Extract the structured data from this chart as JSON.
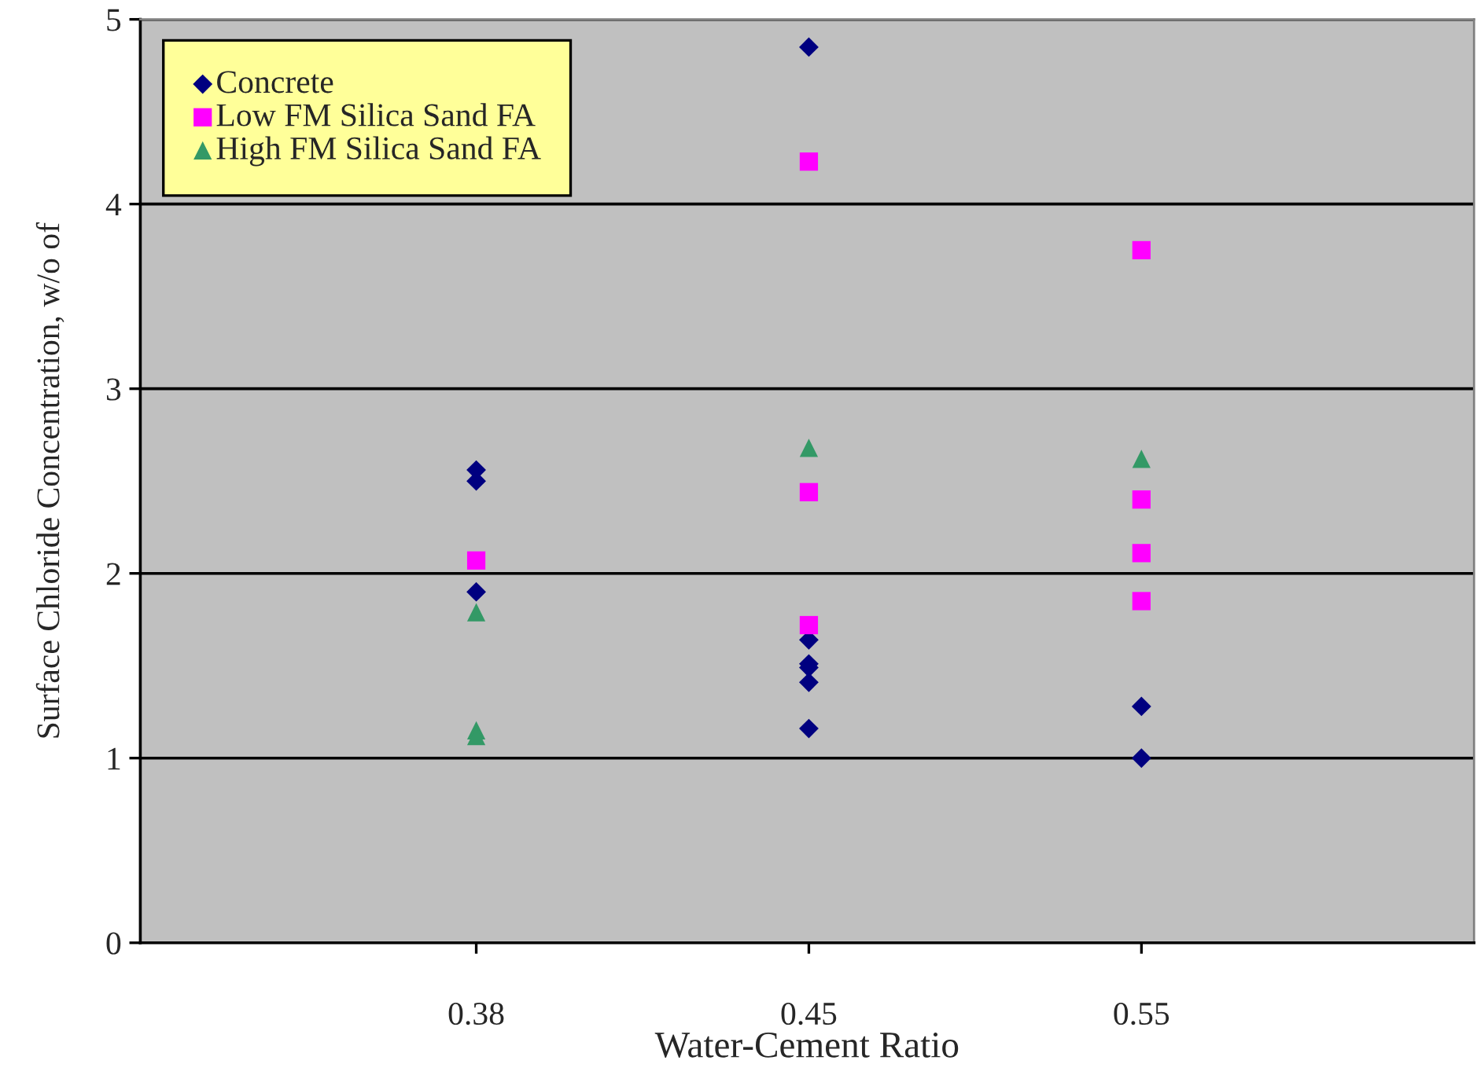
{
  "chart_data": {
    "type": "scatter",
    "xlabel": "Water-Cement Ratio",
    "ylabel": "Surface Chloride Concentration, w/o of",
    "categories": [
      "0.38",
      "0.45",
      "0.55"
    ],
    "ylim": [
      0,
      5
    ],
    "yticks": [
      0,
      1,
      2,
      3,
      4,
      5
    ],
    "grid": "y",
    "legend": "top left",
    "series": [
      {
        "name": "Concrete",
        "color": "#000080",
        "marker": "diamond",
        "x": [
          "0.38",
          "0.38",
          "0.38",
          "0.45",
          "0.45",
          "0.45",
          "0.45",
          "0.45",
          "0.45",
          "0.55",
          "0.55"
        ],
        "values": [
          2.56,
          2.5,
          1.9,
          4.85,
          1.64,
          1.51,
          1.49,
          1.41,
          1.16,
          1.28,
          1.0
        ]
      },
      {
        "name": "Low FM Silica Sand FA",
        "color": "#ff00ff",
        "marker": "square",
        "x": [
          "0.38",
          "0.45",
          "0.45",
          "0.45",
          "0.55",
          "0.55",
          "0.55",
          "0.55"
        ],
        "values": [
          2.07,
          4.23,
          2.44,
          1.72,
          3.75,
          2.4,
          2.11,
          1.85
        ]
      },
      {
        "name": "High FM Silica Sand FA",
        "color": "#339966",
        "marker": "triangle",
        "x": [
          "0.38",
          "0.38",
          "0.38",
          "0.45",
          "0.55"
        ],
        "values": [
          1.79,
          1.15,
          1.12,
          2.68,
          2.62
        ]
      }
    ]
  }
}
